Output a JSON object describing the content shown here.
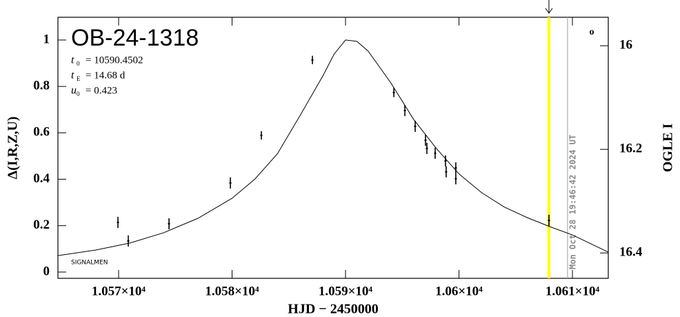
{
  "chart_data": {
    "type": "scatter",
    "title": "OB-24-1318",
    "parameters": [
      {
        "symbol": "t",
        "sub": "0",
        "text": "= 10590.4502"
      },
      {
        "symbol": "t",
        "sub": "E",
        "text": "= 14.68 d"
      },
      {
        "symbol": "u",
        "sub": "0",
        "text": "= 0.423"
      }
    ],
    "xlabel": "HJD − 2450000",
    "ylabel": "Δ(I,R,Z,U)",
    "y2label": "OGLE I",
    "signature": "SIGNALMEN",
    "corner_mark": "o",
    "timestamp": "Mon Oct 28 19:46:42 2024 UT",
    "xlim": [
      10564.65,
      10613.16
    ],
    "ylim": [
      -0.027,
      1.098
    ],
    "y2lim": [
      15.945,
      16.449
    ],
    "xticks": [
      {
        "value": 10570,
        "label": "1.057×10⁴"
      },
      {
        "value": 10580,
        "label": "1.058×10⁴"
      },
      {
        "value": 10590,
        "label": "1.059×10⁴"
      },
      {
        "value": 10600,
        "label": "1.06×10⁴"
      },
      {
        "value": 10610,
        "label": "1.061×10⁴"
      }
    ],
    "yticks": [
      0,
      0.2,
      0.4,
      0.6,
      0.8,
      1
    ],
    "y2ticks": [
      16,
      16.2,
      16.4
    ],
    "series": [
      {
        "name": "OGLE I",
        "color": "#000000",
        "x": [
          10569.94,
          10570.85,
          10574.44,
          10579.85,
          10582.58,
          10587.08,
          10594.26,
          10595.23,
          10596.14,
          10597.05,
          10597.17,
          10597.9,
          10598.81,
          10598.87,
          10599.72,
          10599.72,
          10607.93
        ],
        "values": [
          0.214,
          0.134,
          0.208,
          0.384,
          0.589,
          0.914,
          0.774,
          0.696,
          0.628,
          0.568,
          0.533,
          0.512,
          0.479,
          0.432,
          0.449,
          0.402,
          0.223
        ],
        "errors": [
          0.024,
          0.024,
          0.024,
          0.024,
          0.018,
          0.018,
          0.02,
          0.024,
          0.024,
          0.024,
          0.024,
          0.024,
          0.024,
          0.024,
          0.024,
          0.024,
          0.024
        ]
      }
    ],
    "model": {
      "color": "#000000",
      "x": [
        10564.65,
        10568,
        10571,
        10574,
        10577,
        10580,
        10582,
        10584,
        10586,
        10588,
        10589,
        10590,
        10591,
        10592,
        10594,
        10596,
        10598,
        10600,
        10602,
        10604,
        10606,
        10608,
        10610,
        10613.16
      ],
      "values": [
        0.071,
        0.095,
        0.125,
        0.17,
        0.232,
        0.318,
        0.4,
        0.51,
        0.675,
        0.845,
        0.94,
        1.0,
        0.994,
        0.952,
        0.815,
        0.658,
        0.533,
        0.423,
        0.342,
        0.28,
        0.235,
        0.196,
        0.16,
        0.086
      ]
    },
    "markers": [
      {
        "x": 10607.93,
        "color": "#ffff00"
      },
      {
        "x": 10609.57,
        "color": "#aaaaaa"
      }
    ]
  }
}
